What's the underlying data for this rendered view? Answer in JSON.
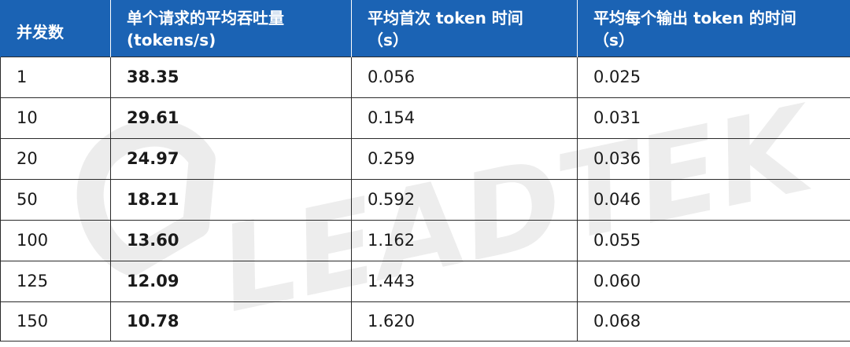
{
  "watermark": "LEADTEK",
  "table": {
    "headers": [
      "并发数",
      "单个请求的平均吞吐量\n(tokens/s)",
      "平均首次 token 时间\n（s）",
      "平均每个输出 token 的时间\n（s）"
    ],
    "rows": [
      [
        "1",
        "38.35",
        "0.056",
        "0.025"
      ],
      [
        "10",
        "29.61",
        "0.154",
        "0.031"
      ],
      [
        "20",
        "24.97",
        "0.259",
        "0.036"
      ],
      [
        "50",
        "18.21",
        "0.592",
        "0.046"
      ],
      [
        "100",
        "13.60",
        "1.162",
        "0.055"
      ],
      [
        "125",
        "12.09",
        "1.443",
        "0.060"
      ],
      [
        "150",
        "10.78",
        "1.620",
        "0.068"
      ]
    ]
  },
  "colors": {
    "header_bg": "#1b63b4",
    "header_text": "#ffffff",
    "border": "#2a2a2a"
  }
}
